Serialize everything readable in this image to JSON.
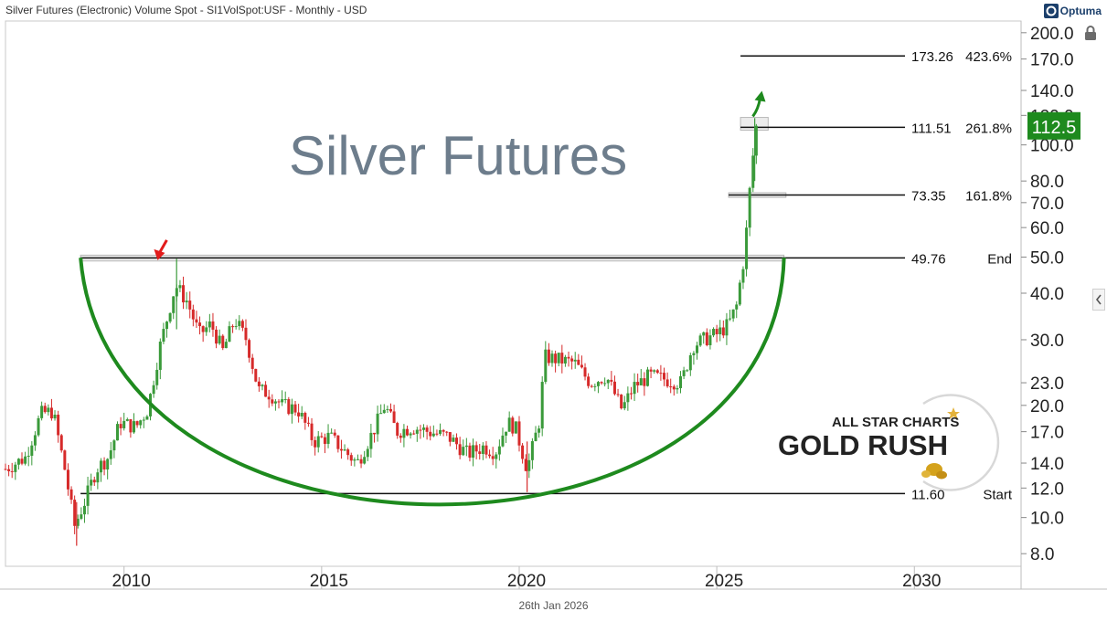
{
  "header": {
    "title": "Silver Futures (Electronic) Volume Spot - SI1VolSpot:USF - Monthly - USD",
    "brand": "Optuma"
  },
  "footer": {
    "date": "26th Jan 2026"
  },
  "colors": {
    "up": "#3a9a3a",
    "down": "#d62a2a",
    "cup": "#1e8a1e",
    "badge": "#1e8a1e",
    "arrow_red": "#e21b1b",
    "arrow_green": "#1e8a1e",
    "watermark": "#6d7d8c",
    "grid": "#c8c8c8"
  },
  "chart_data": {
    "type": "candlestick",
    "title": "Silver Futures",
    "xlabel": "",
    "ylabel": "",
    "y_scale": "log",
    "ylim": [
      7.4,
      215
    ],
    "xlim": [
      2007.0,
      2032.7
    ],
    "y_ticks": [
      {
        "value": 200,
        "label": "200.0"
      },
      {
        "value": 170,
        "label": "170.0"
      },
      {
        "value": 140,
        "label": "140.0"
      },
      {
        "value": 120,
        "label": "120.0"
      },
      {
        "value": 100,
        "label": "100.0"
      },
      {
        "value": 80,
        "label": "80.0"
      },
      {
        "value": 70,
        "label": "70.0"
      },
      {
        "value": 60,
        "label": "60.0"
      },
      {
        "value": 50,
        "label": "50.0"
      },
      {
        "value": 40,
        "label": "40.0"
      },
      {
        "value": 30,
        "label": "30.0"
      },
      {
        "value": 23,
        "label": "23.0"
      },
      {
        "value": 20,
        "label": "20.0"
      },
      {
        "value": 17,
        "label": "17.0"
      },
      {
        "value": 14,
        "label": "14.0"
      },
      {
        "value": 12,
        "label": "12.0"
      },
      {
        "value": 10,
        "label": "10.0"
      },
      {
        "value": 8,
        "label": "8.0"
      }
    ],
    "x_ticks": [
      {
        "value": 2010,
        "label": "2010"
      },
      {
        "value": 2015,
        "label": "2015"
      },
      {
        "value": 2020,
        "label": "2020"
      },
      {
        "value": 2025,
        "label": "2025"
      },
      {
        "value": 2030,
        "label": "2030"
      }
    ],
    "last_value": {
      "value": 112.5,
      "label": "112.5"
    },
    "levels": [
      {
        "value": 173.26,
        "price_label": "173.26",
        "tag": "423.6%",
        "x_start": 2025.6,
        "x_end": 2029.0
      },
      {
        "value": 111.51,
        "price_label": "111.51",
        "tag": "261.8%",
        "x_start": 2025.6,
        "x_end": 2029.0
      },
      {
        "value": 73.35,
        "price_label": "73.35",
        "tag": "161.8%",
        "x_start": 2025.3,
        "x_end": 2029.0
      },
      {
        "value": 49.76,
        "price_label": "49.76",
        "tag": "End",
        "x_start": 2008.9,
        "x_end": 2029.0
      },
      {
        "value": 11.6,
        "price_label": "11.60",
        "tag": "Start",
        "x_start": 2008.9,
        "x_end": 2029.0
      }
    ],
    "zones": [
      {
        "x_start": 2008.9,
        "x_end": 2026.7,
        "low": 48.8,
        "high": 50.6
      },
      {
        "x_start": 2025.6,
        "x_end": 2026.3,
        "low": 109.5,
        "high": 118.5
      },
      {
        "x_start": 2025.3,
        "x_end": 2026.75,
        "low": 72.3,
        "high": 74.4
      }
    ],
    "cup": {
      "x_start": 2008.9,
      "x_end": 2026.7,
      "top": 49.8,
      "bottom": 10.8
    },
    "annotations": [
      {
        "type": "arrow",
        "color": "red",
        "x": 2010.85,
        "y": 48.5
      },
      {
        "type": "arrow",
        "color": "green",
        "x": 2026.05,
        "y": 135
      }
    ],
    "anchors": [
      [
        2007.0,
        13.5
      ],
      [
        2007.5,
        14.5
      ],
      [
        2007.9,
        19.0
      ],
      [
        2008.2,
        19.3
      ],
      [
        2008.5,
        13.5
      ],
      [
        2008.75,
        9.5
      ],
      [
        2009.0,
        11.0
      ],
      [
        2009.3,
        13.5
      ],
      [
        2009.6,
        14.5
      ],
      [
        2009.9,
        18.0
      ],
      [
        2010.3,
        17.5
      ],
      [
        2010.6,
        19.5
      ],
      [
        2010.9,
        28.5
      ],
      [
        2011.3,
        42.0
      ],
      [
        2011.6,
        38.0
      ],
      [
        2011.9,
        31.0
      ],
      [
        2012.2,
        33.0
      ],
      [
        2012.5,
        28.0
      ],
      [
        2012.8,
        34.0
      ],
      [
        2013.1,
        30.0
      ],
      [
        2013.4,
        22.0
      ],
      [
        2013.7,
        21.5
      ],
      [
        2014.0,
        20.0
      ],
      [
        2014.4,
        19.5
      ],
      [
        2014.8,
        16.0
      ],
      [
        2015.2,
        16.5
      ],
      [
        2015.6,
        15.0
      ],
      [
        2015.9,
        14.0
      ],
      [
        2016.3,
        17.0
      ],
      [
        2016.6,
        20.0
      ],
      [
        2016.9,
        17.0
      ],
      [
        2017.3,
        17.5
      ],
      [
        2017.7,
        17.0
      ],
      [
        2018.2,
        16.5
      ],
      [
        2018.7,
        14.8
      ],
      [
        2019.1,
        15.5
      ],
      [
        2019.4,
        15.0
      ],
      [
        2019.7,
        18.0
      ],
      [
        2019.9,
        17.5
      ],
      [
        2020.2,
        13.5
      ],
      [
        2020.5,
        18.0
      ],
      [
        2020.65,
        27.0
      ],
      [
        2021.0,
        26.5
      ],
      [
        2021.4,
        26.0
      ],
      [
        2021.8,
        23.0
      ],
      [
        2022.2,
        24.0
      ],
      [
        2022.6,
        19.5
      ],
      [
        2022.9,
        22.5
      ],
      [
        2023.3,
        24.0
      ],
      [
        2023.7,
        23.5
      ],
      [
        2024.1,
        23.0
      ],
      [
        2024.4,
        29.0
      ],
      [
        2024.8,
        30.5
      ],
      [
        2025.0,
        31.0
      ],
      [
        2025.3,
        33.0
      ],
      [
        2025.5,
        37.0
      ],
      [
        2025.62,
        45.0
      ],
      [
        2025.72,
        52.0
      ],
      [
        2025.8,
        72.0
      ],
      [
        2025.88,
        80.0
      ],
      [
        2025.96,
        112.5
      ]
    ]
  }
}
